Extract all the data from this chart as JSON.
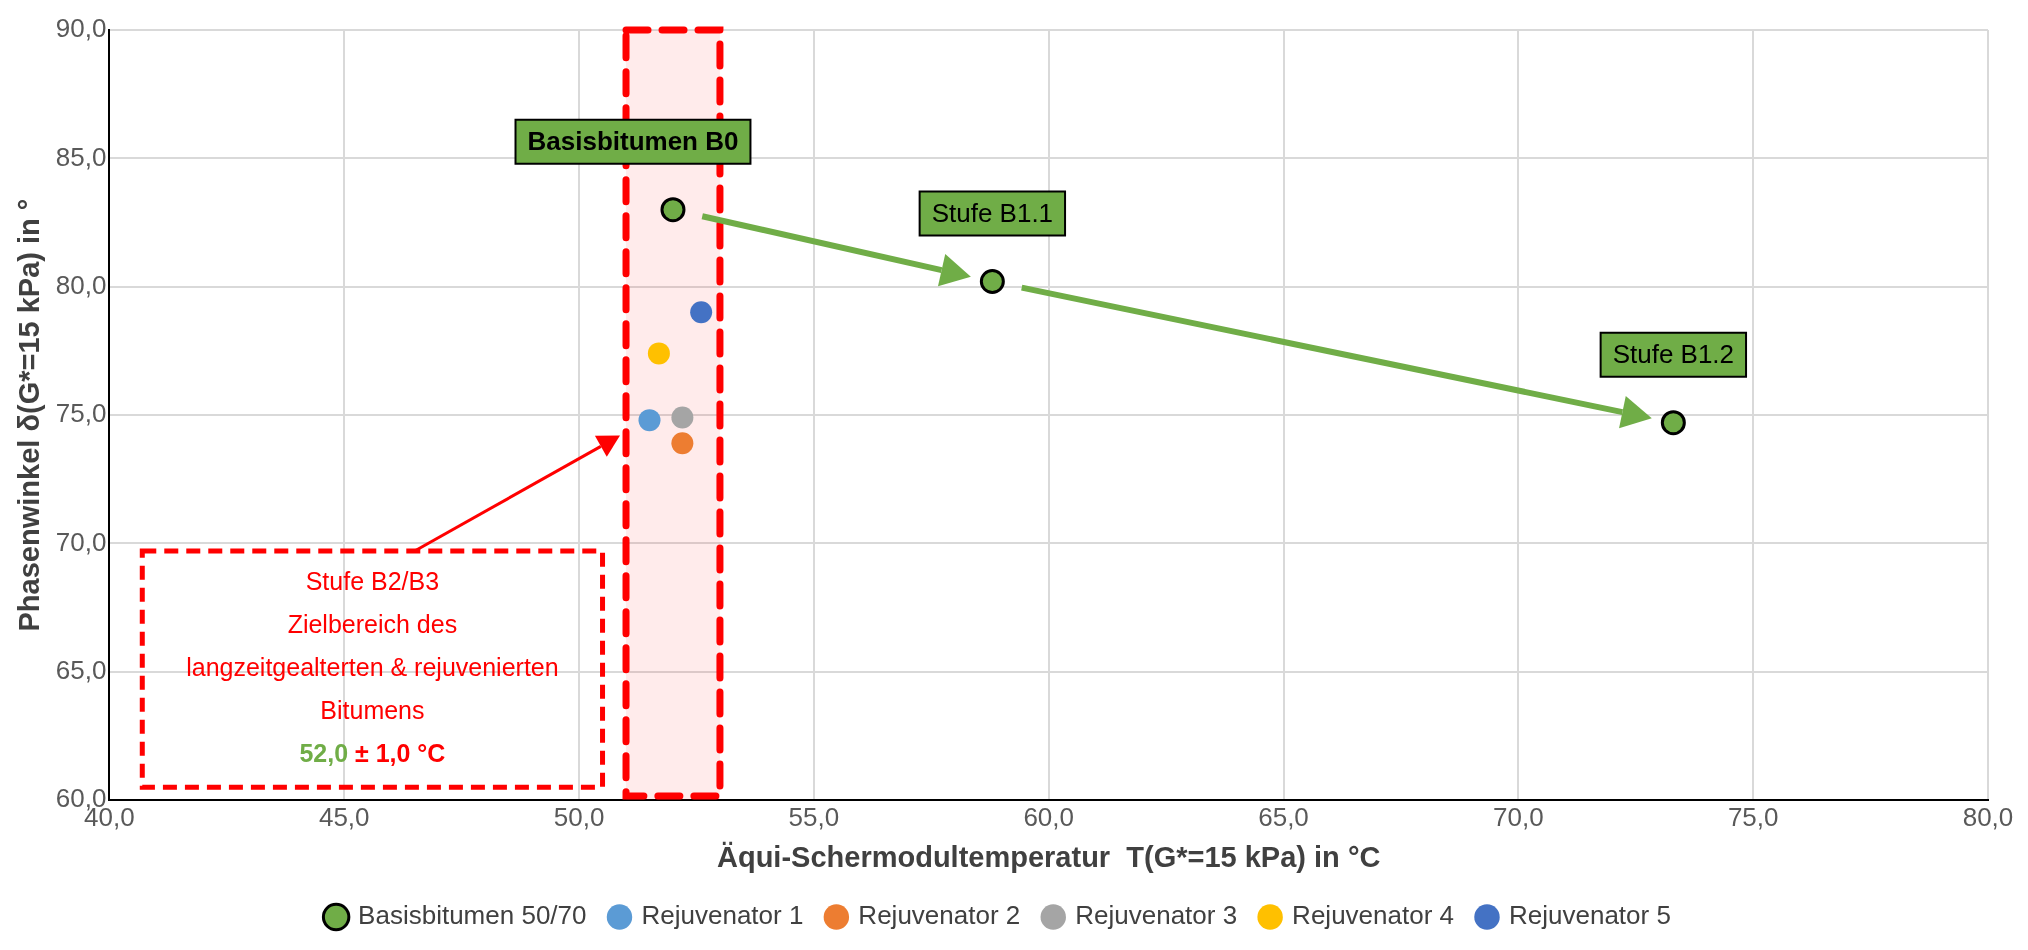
{
  "chart_data": {
    "type": "scatter",
    "xlabel": "Äqui-Schermodultemperatur  T(G*=15 kPa) in °C",
    "ylabel": "Phasenwinkel δ(G*=15 kPa) in °",
    "xlim": [
      40,
      80
    ],
    "xticks": [
      {
        "value": 40,
        "label": "40,0"
      },
      {
        "value": 45,
        "label": "45,0"
      },
      {
        "value": 50,
        "label": "50,0"
      },
      {
        "value": 55,
        "label": "55,0"
      },
      {
        "value": 60,
        "label": "60,0"
      },
      {
        "value": 65,
        "label": "65,0"
      },
      {
        "value": 70,
        "label": "70,0"
      },
      {
        "value": 75,
        "label": "75,0"
      },
      {
        "value": 80,
        "label": "80,0"
      }
    ],
    "ylim": [
      60,
      90
    ],
    "yticks": [
      {
        "value": 60,
        "label": "60,0"
      },
      {
        "value": 65,
        "label": "65,0"
      },
      {
        "value": 70,
        "label": "70,0"
      },
      {
        "value": 75,
        "label": "75,0"
      },
      {
        "value": 80,
        "label": "80,0"
      },
      {
        "value": 85,
        "label": "85,0"
      },
      {
        "value": 90,
        "label": "90,0"
      }
    ],
    "grid": true,
    "legend": "bottom",
    "marker": "circle",
    "series": [
      {
        "name": "Basisbitumen 50/70",
        "color": "#70ad47",
        "x": [
          52.0,
          58.8,
          73.3
        ],
        "values": [
          83.0,
          80.2,
          74.7
        ]
      },
      {
        "name": "Rejuvenator 1",
        "color": "#5b9bd5",
        "x": [
          51.5
        ],
        "values": [
          74.8
        ]
      },
      {
        "name": "Rejuvenator 2",
        "color": "#ed7d31",
        "x": [
          52.2
        ],
        "values": [
          73.9
        ]
      },
      {
        "name": "Rejuvenator 3",
        "color": "#a5a5a5",
        "x": [
          52.2
        ],
        "values": [
          74.9
        ]
      },
      {
        "name": "Rejuvenator 4",
        "color": "#ffc000",
        "x": [
          51.7
        ],
        "values": [
          77.4
        ]
      },
      {
        "name": "Rejuvenator 5",
        "color": "#4472c4",
        "x": [
          52.6
        ],
        "values": [
          79.0
        ]
      }
    ],
    "bands": [
      {
        "axis": "x",
        "from": 51,
        "to": 53,
        "color": "#ff0000",
        "label": "Stufe B2/B3\nZielbereich des\nlangzeitgealterten & rejuvenierten\nBitumens\n52,0 ± 1,0 °C"
      }
    ],
    "annotations": [
      {
        "text": "Basisbitumen B0",
        "x": 52.0,
        "y": 83.0
      },
      {
        "text": "Stufe B1.1",
        "x": 58.8,
        "y": 80.2
      },
      {
        "text": "Stufe B1.2",
        "x": 73.3,
        "y": 74.7
      }
    ]
  }
}
